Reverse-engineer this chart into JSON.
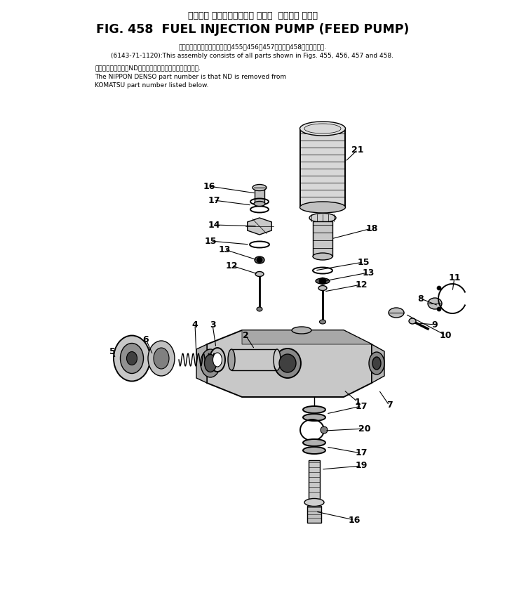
{
  "title_japanese": "フェエル インジェクション ポンプ  フィード ポンプ",
  "title_english": "FIG. 458  FUEL INJECTION PUMP (FEED PUMP)",
  "subtitle1_japanese": "このアセンブリの構成部品は围455、456、457および围458図を含みます.",
  "subtitle1_english": "(6143-71-1120):This assembly consists of all parts shown in Figs. 455, 456, 457 and 458.",
  "subtitle2_japanese": "部品のメーカー番号NDを除いたものが日本電装の部品です.",
  "subtitle2_english1": "The NIPPON DENSO part number is that ND is removed from",
  "subtitle2_english2": "KOMATSU part number listed below.",
  "bg_color": "#ffffff",
  "fg_color": "#000000"
}
